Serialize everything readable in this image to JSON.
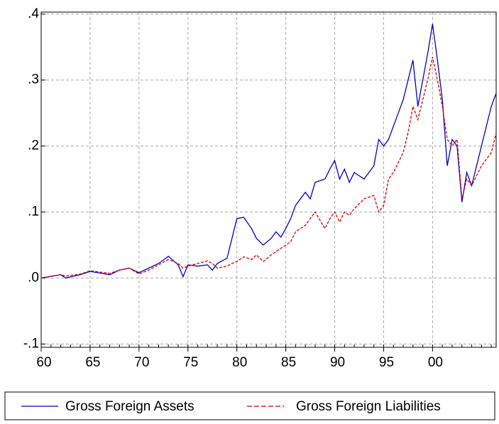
{
  "chart_data": {
    "type": "line",
    "x": [
      1960,
      1962,
      1962.5,
      1964,
      1965,
      1967,
      1968,
      1969,
      1970,
      1971,
      1972,
      1973,
      1974,
      1974.5,
      1975,
      1976,
      1977,
      1977.5,
      1978,
      1979,
      1979.5,
      1980,
      1980.7,
      1981.5,
      1982,
      1982.7,
      1983.5,
      1984,
      1984.5,
      1985,
      1985.5,
      1986,
      1987,
      1987.5,
      1988,
      1989,
      1989.5,
      1990,
      1990.5,
      1991,
      1991.5,
      1992,
      1993,
      1994,
      1994.5,
      1995,
      1995.5,
      1996,
      1997,
      1997.5,
      1998,
      1998.5,
      1999,
      1999.5,
      2000,
      2000.5,
      2001,
      2001.5,
      2002,
      2002.5,
      2003,
      2003.5,
      2004,
      2005,
      2006,
      2006.5
    ],
    "series": [
      {
        "name": "Gross Foreign Assets",
        "color": "#0000cc",
        "dashed": false,
        "values": [
          0,
          0.005,
          0,
          0.005,
          0.01,
          0.005,
          0.012,
          0.015,
          0.008,
          0.015,
          0.022,
          0.033,
          0.02,
          0.002,
          0.02,
          0.018,
          0.02,
          0.012,
          0.022,
          0.03,
          0.06,
          0.09,
          0.092,
          0.075,
          0.06,
          0.05,
          0.06,
          0.07,
          0.062,
          0.075,
          0.09,
          0.11,
          0.13,
          0.12,
          0.145,
          0.15,
          0.165,
          0.178,
          0.15,
          0.165,
          0.145,
          0.16,
          0.15,
          0.17,
          0.21,
          0.2,
          0.21,
          0.23,
          0.27,
          0.3,
          0.33,
          0.26,
          0.3,
          0.34,
          0.385,
          0.33,
          0.27,
          0.17,
          0.21,
          0.2,
          0.115,
          0.16,
          0.14,
          0.2,
          0.26,
          0.28
        ]
      },
      {
        "name": "Gross Foreign Liabilities",
        "color": "#dd0000",
        "dashed": true,
        "values": [
          0,
          0.005,
          0.003,
          0.006,
          0.011,
          0.007,
          0.012,
          0.015,
          0.006,
          0.012,
          0.02,
          0.028,
          0.022,
          0.015,
          0.018,
          0.022,
          0.026,
          0.022,
          0.015,
          0.018,
          0.022,
          0.025,
          0.032,
          0.028,
          0.035,
          0.025,
          0.035,
          0.04,
          0.045,
          0.05,
          0.055,
          0.07,
          0.08,
          0.09,
          0.1,
          0.075,
          0.09,
          0.1,
          0.085,
          0.1,
          0.095,
          0.105,
          0.12,
          0.125,
          0.1,
          0.11,
          0.15,
          0.16,
          0.19,
          0.22,
          0.26,
          0.24,
          0.27,
          0.3,
          0.335,
          0.3,
          0.26,
          0.21,
          0.2,
          0.21,
          0.12,
          0.15,
          0.14,
          0.17,
          0.19,
          0.22
        ]
      }
    ],
    "xlim": [
      1960,
      2006.5
    ],
    "xticks": [
      {
        "value": 1960,
        "label": "60"
      },
      {
        "value": 1965,
        "label": "65"
      },
      {
        "value": 1970,
        "label": "70"
      },
      {
        "value": 1975,
        "label": "75"
      },
      {
        "value": 1980,
        "label": "80"
      },
      {
        "value": 1985,
        "label": "85"
      },
      {
        "value": 1990,
        "label": "90"
      },
      {
        "value": 1995,
        "label": "95"
      },
      {
        "value": 2000,
        "label": "00"
      }
    ],
    "ylim": [
      -0.105,
      0.403
    ],
    "yticks": [
      {
        "value": -0.1,
        "label": "-.1"
      },
      {
        "value": 0,
        "label": ".0"
      },
      {
        "value": 0.1,
        "label": ".1"
      },
      {
        "value": 0.2,
        "label": ".2"
      },
      {
        "value": 0.3,
        "label": ".3"
      },
      {
        "value": 0.4,
        "label": ".4"
      }
    ],
    "grid": true,
    "legend": "bottom"
  }
}
